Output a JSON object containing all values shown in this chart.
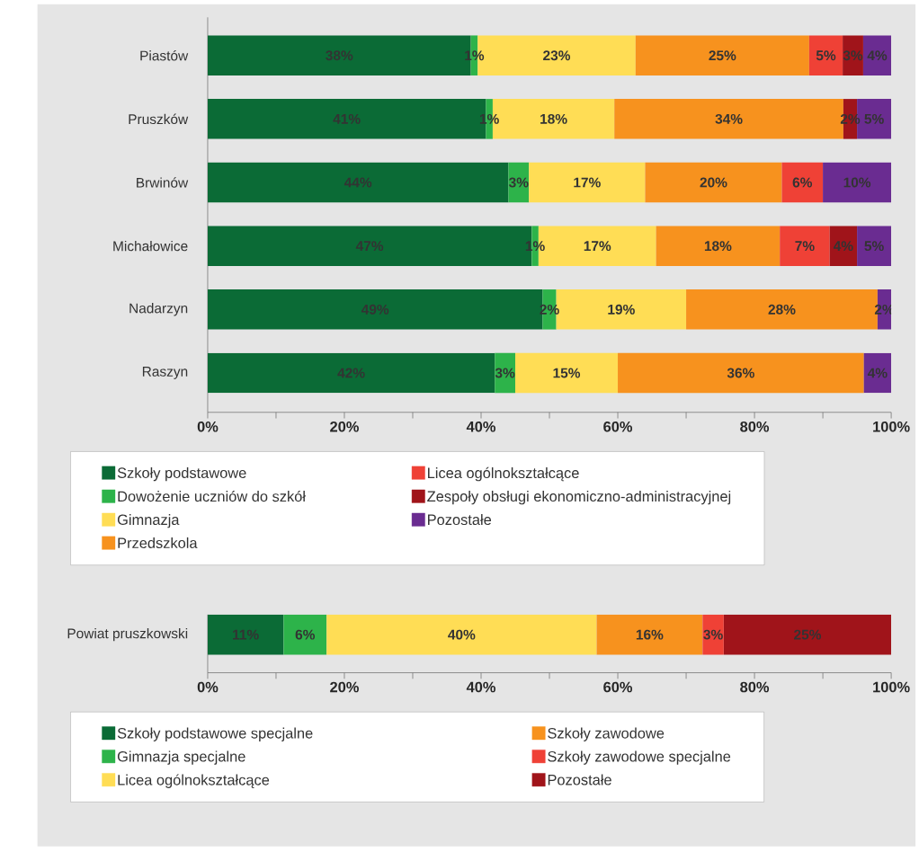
{
  "chart_data": [
    {
      "type": "bar",
      "orientation": "horizontal",
      "stacked": true,
      "legend": "bottom",
      "xlim": [
        0,
        100
      ],
      "xticks": [
        {
          "value": 0,
          "label": "0%"
        },
        {
          "value": 10,
          "label": null
        },
        {
          "value": 20,
          "label": "20%"
        },
        {
          "value": 30,
          "label": null
        },
        {
          "value": 40,
          "label": "40%"
        },
        {
          "value": 50,
          "label": null
        },
        {
          "value": 60,
          "label": "60%"
        },
        {
          "value": 70,
          "label": null
        },
        {
          "value": 80,
          "label": "80%"
        },
        {
          "value": 90,
          "label": null
        },
        {
          "value": 100,
          "label": "100%"
        }
      ],
      "categories": [
        "Piastów",
        "Pruszków",
        "Brwinów",
        "Michałowice",
        "Nadarzyn",
        "Raszyn"
      ],
      "series": [
        {
          "name": "Szkoły podstawowe",
          "color": "#0b6b36",
          "values": [
            38.5,
            40.7,
            44,
            47.4,
            49,
            42
          ],
          "value_labels": [
            "38%",
            "41%",
            "44%",
            "47%",
            "49%",
            "42%"
          ]
        },
        {
          "name": "Dowożenie uczniów do szkół",
          "color": "#2db34a",
          "values": [
            1.0,
            1.0,
            3,
            1.0,
            2,
            3
          ],
          "value_labels": [
            "1%",
            "1%",
            "3%",
            "1%",
            "2%",
            "3%"
          ]
        },
        {
          "name": "Gimnazja",
          "color": "#ffdd55",
          "values": [
            23.1,
            17.8,
            17,
            17.2,
            19,
            15
          ],
          "value_labels": [
            "23%",
            "18%",
            "17%",
            "17%",
            "19%",
            "15%"
          ]
        },
        {
          "name": "Przedszkola",
          "color": "#f7921e",
          "values": [
            25.4,
            33.5,
            20,
            18.1,
            28,
            36
          ],
          "value_labels": [
            "25%",
            "34%",
            "20%",
            "18%",
            "28%",
            "36%"
          ]
        },
        {
          "name": "Licea ogólnokształcące",
          "color": "#ef4136",
          "values": [
            4.9,
            null,
            6,
            7.3,
            null,
            null
          ],
          "value_labels": [
            "5%",
            null,
            "6%",
            "7%",
            null,
            null
          ]
        },
        {
          "name": "Zespoły obsługi ekonomiczno-administracyjnej",
          "color": "#a0141a",
          "values": [
            3.0,
            2.0,
            null,
            4.0,
            null,
            null
          ],
          "value_labels": [
            "3%",
            "2%",
            null,
            "4%",
            null,
            null
          ]
        },
        {
          "name": "Pozostałe",
          "color": "#6a2c91",
          "values": [
            4.1,
            5.0,
            10,
            5.0,
            2,
            4
          ],
          "value_labels": [
            "4%",
            "5%",
            "10%",
            "5%",
            "2%",
            "4%"
          ]
        }
      ]
    },
    {
      "type": "bar",
      "orientation": "horizontal",
      "stacked": true,
      "legend": "bottom",
      "xlim": [
        0,
        100
      ],
      "xticks": [
        {
          "value": 0,
          "label": "0%"
        },
        {
          "value": 10,
          "label": null
        },
        {
          "value": 20,
          "label": "20%"
        },
        {
          "value": 30,
          "label": null
        },
        {
          "value": 40,
          "label": "40%"
        },
        {
          "value": 50,
          "label": null
        },
        {
          "value": 60,
          "label": "60%"
        },
        {
          "value": 70,
          "label": null
        },
        {
          "value": 80,
          "label": "80%"
        },
        {
          "value": 90,
          "label": null
        },
        {
          "value": 100,
          "label": "100%"
        }
      ],
      "categories": [
        "Powiat pruszkowski"
      ],
      "series": [
        {
          "name": "Szkoły podstawowe specjalne",
          "color": "#0b6b36",
          "values": [
            11.1
          ],
          "value_labels": [
            "11%"
          ]
        },
        {
          "name": "Gimnazja specjalne",
          "color": "#2db34a",
          "values": [
            6.3
          ],
          "value_labels": [
            "6%"
          ]
        },
        {
          "name": "Licea ogólnokształcące",
          "color": "#ffdd55",
          "values": [
            39.5
          ],
          "value_labels": [
            "40%"
          ]
        },
        {
          "name": "Szkoły zawodowe",
          "color": "#f7921e",
          "values": [
            15.5
          ],
          "value_labels": [
            "16%"
          ]
        },
        {
          "name": "Szkoły zawodowe specjalne",
          "color": "#ef4136",
          "values": [
            3.1
          ],
          "value_labels": [
            "3%"
          ]
        },
        {
          "name": "Pozostałe",
          "color": "#a0141a",
          "values": [
            24.5
          ],
          "value_labels": [
            "25%"
          ]
        }
      ]
    }
  ]
}
